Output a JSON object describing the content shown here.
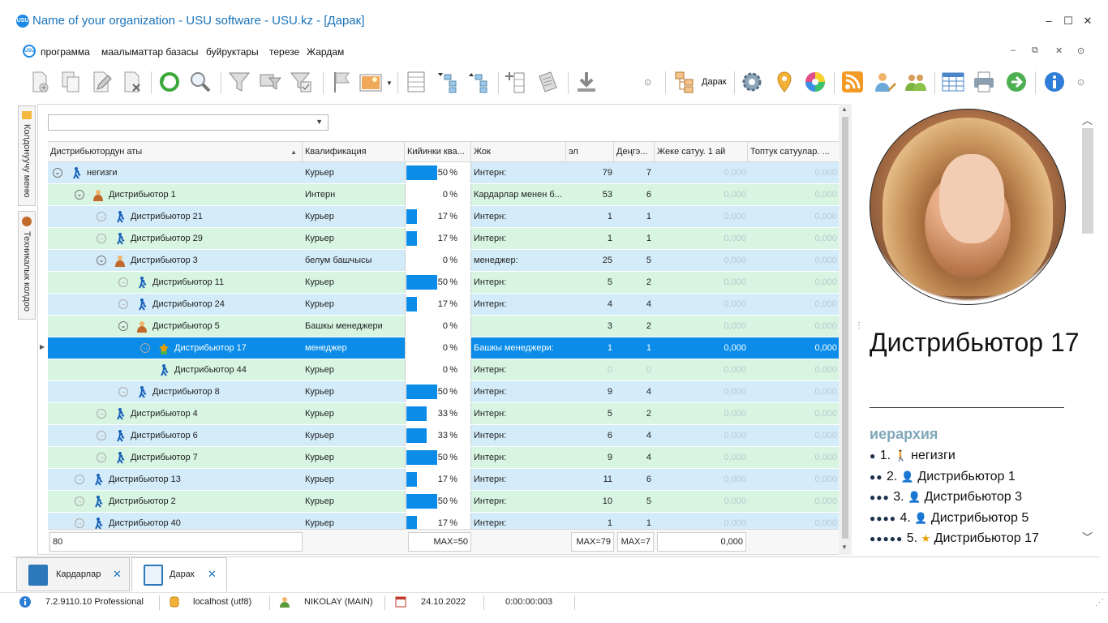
{
  "window": {
    "title": "Name of your organization - USU software - USU.kz - [Дарак]",
    "logo": "USU",
    "buttons": [
      "–",
      "☐",
      "✕"
    ]
  },
  "menu": {
    "items": [
      "программа",
      "маалыматтар базасы",
      "буйруктары",
      "терезе",
      "Жардам"
    ],
    "window_controls": [
      "–",
      "⧉",
      "✕",
      "⊙"
    ]
  },
  "toolbar": {
    "tree_button_label": "Дарак",
    "icons": [
      "add-icon",
      "copy-icon",
      "edit-icon",
      "delete-icon",
      "refresh-icon",
      "search-icon",
      "filter-icon",
      "filter-settings-icon",
      "filter-clear-icon",
      "flag-icon",
      "image-icon",
      "expand-rows-icon",
      "tree-expand-icon",
      "tree-collapse-icon",
      "add-column-icon",
      "notes-icon",
      "download-icon",
      "arrow-circle-icon",
      "tree-icon",
      "gear-icon",
      "location-pin-icon",
      "color-wheel-icon",
      "rss-icon",
      "user-edit-icon",
      "users-icon",
      "table-icon",
      "printer-icon",
      "forward-icon",
      "info-icon"
    ]
  },
  "left_tabs": [
    "Колдонуучу меню",
    "Техникалык колдоо"
  ],
  "grid": {
    "filter_value": "",
    "columns": [
      "Дистрибьютордун аты",
      "Квалификация",
      "Кийинки ква...",
      "Жок",
      "эл",
      "Деңгэ...",
      "Жеке сатуу. 1 ай",
      "Топтук сатуулар. ..."
    ],
    "rows": [
      {
        "name": "негизги",
        "level": 0,
        "icon": "walk",
        "exp": "⊙",
        "qual": "Курьер",
        "pct": 50,
        "pct_label": "50",
        "jok": "Интерн:",
        "el": "79",
        "den": "7",
        "j1": "0,000",
        "t1": "0,000",
        "color": "blue"
      },
      {
        "name": "Дистрибьютор 1",
        "level": 1,
        "icon": "boss",
        "exp": "⊙",
        "qual": "Интерн",
        "pct": 0,
        "pct_label": "0",
        "jok": "Кардарлар менен б...",
        "el": "53",
        "den": "6",
        "j1": "0,000",
        "t1": "0,000",
        "color": "green"
      },
      {
        "name": "Дистрибьютор 21",
        "level": 2,
        "icon": "walk",
        "exp": "→",
        "qual": "Курьер",
        "pct": 17,
        "pct_label": "17",
        "jok": "Интерн:",
        "el": "1",
        "den": "1",
        "j1": "0,000",
        "t1": "0,000",
        "color": "blue"
      },
      {
        "name": "Дистрибьютор 29",
        "level": 2,
        "icon": "walk",
        "exp": "→",
        "qual": "Курьер",
        "pct": 17,
        "pct_label": "17",
        "jok": "Интерн:",
        "el": "1",
        "den": "1",
        "j1": "0,000",
        "t1": "0,000",
        "color": "green"
      },
      {
        "name": "Дистрибьютор 3",
        "level": 2,
        "icon": "boss",
        "exp": "⊙",
        "qual": "белум башчысы",
        "pct": 0,
        "pct_label": "0",
        "jok": "менеджер:",
        "el": "25",
        "den": "5",
        "j1": "0,000",
        "t1": "0,000",
        "color": "blue"
      },
      {
        "name": "Дистрибьютор 11",
        "level": 3,
        "icon": "walk",
        "exp": "→",
        "qual": "Курьер",
        "pct": 50,
        "pct_label": "50",
        "jok": "Интерн:",
        "el": "5",
        "den": "2",
        "j1": "0,000",
        "t1": "0,000",
        "color": "green"
      },
      {
        "name": "Дистрибьютор 24",
        "level": 3,
        "icon": "walk",
        "exp": "→",
        "qual": "Курьер",
        "pct": 17,
        "pct_label": "17",
        "jok": "Интерн:",
        "el": "4",
        "den": "4",
        "j1": "0,000",
        "t1": "0,000",
        "color": "blue"
      },
      {
        "name": "Дистрибьютор 5",
        "level": 3,
        "icon": "boss",
        "exp": "⊙",
        "qual": "Башкы менеджери",
        "pct": 0,
        "pct_label": "0",
        "jok": "",
        "el": "3",
        "den": "2",
        "j1": "0,000",
        "t1": "0,000",
        "color": "green"
      },
      {
        "name": "Дистрибьютор 17",
        "level": 4,
        "icon": "star",
        "exp": "→",
        "qual": "менеджер",
        "pct": 0,
        "pct_label": "0",
        "jok": "Башкы менеджери:",
        "el": "1",
        "den": "1",
        "j1": "0,000",
        "t1": "0,000",
        "color": "blue",
        "selected": true
      },
      {
        "name": "Дистрибьютор 44",
        "level": 4,
        "icon": "walk",
        "exp": "",
        "qual": "Курьер",
        "pct": 0,
        "pct_label": "0",
        "jok": "Интерн:",
        "el": "0",
        "den": "0",
        "j1": "0,000",
        "t1": "0,000",
        "color": "green"
      },
      {
        "name": "Дистрибьютор 8",
        "level": 3,
        "icon": "walk",
        "exp": "→",
        "qual": "Курьер",
        "pct": 50,
        "pct_label": "50",
        "jok": "Интерн:",
        "el": "9",
        "den": "4",
        "j1": "0,000",
        "t1": "0,000",
        "color": "blue"
      },
      {
        "name": "Дистрибьютор 4",
        "level": 2,
        "icon": "walk",
        "exp": "→",
        "qual": "Курьер",
        "pct": 33,
        "pct_label": "33",
        "jok": "Интерн:",
        "el": "5",
        "den": "2",
        "j1": "0,000",
        "t1": "0,000",
        "color": "green"
      },
      {
        "name": "Дистрибьютор 6",
        "level": 2,
        "icon": "walk",
        "exp": "→",
        "qual": "Курьер",
        "pct": 33,
        "pct_label": "33",
        "jok": "Интерн:",
        "el": "6",
        "den": "4",
        "j1": "0,000",
        "t1": "0,000",
        "color": "blue"
      },
      {
        "name": "Дистрибьютор 7",
        "level": 2,
        "icon": "walk",
        "exp": "→",
        "qual": "Курьер",
        "pct": 50,
        "pct_label": "50",
        "jok": "Интерн:",
        "el": "9",
        "den": "4",
        "j1": "0,000",
        "t1": "0,000",
        "color": "green"
      },
      {
        "name": "Дистрибьютор 13",
        "level": 1,
        "icon": "walk",
        "exp": "→",
        "qual": "Курьер",
        "pct": 17,
        "pct_label": "17",
        "jok": "Интерн:",
        "el": "11",
        "den": "6",
        "j1": "0,000",
        "t1": "0,000",
        "color": "blue"
      },
      {
        "name": "Дистрибьютор 2",
        "level": 1,
        "icon": "walk",
        "exp": "→",
        "qual": "Курьер",
        "pct": 50,
        "pct_label": "50",
        "jok": "Интерн:",
        "el": "10",
        "den": "5",
        "j1": "0,000",
        "t1": "0,000",
        "color": "green"
      },
      {
        "name": "Дистрибьютор 40",
        "level": 1,
        "icon": "walk",
        "exp": "→",
        "qual": "Курьер",
        "pct": 17,
        "pct_label": "17",
        "jok": "Интерн:",
        "el": "1",
        "den": "1",
        "j1": "0,000",
        "t1": "0,000",
        "color": "blue"
      }
    ],
    "footer": {
      "count": "80",
      "max_kk": "MAX=50",
      "max_el": "MAX=79",
      "max_den": "MAX=7",
      "sum_j1": "0,000"
    },
    "percent_sign": "%"
  },
  "detail": {
    "title": "Дистрибьютор 17",
    "hierarchy_label": "иерархия",
    "hierarchy": [
      {
        "dots": "●",
        "text": "1.",
        "name": "негизги",
        "icon": "walk"
      },
      {
        "dots": "●●",
        "text": "2.",
        "name": "Дистрибьютор 1",
        "icon": "boss"
      },
      {
        "dots": "●●●",
        "text": "3.",
        "name": "Дистрибьютор 3",
        "icon": "boss"
      },
      {
        "dots": "●●●●",
        "text": "4.",
        "name": "Дистрибьютор 5",
        "icon": "boss"
      },
      {
        "dots": "●●●●●",
        "text": "5.",
        "name": "Дистрибьютор 17",
        "icon": "star"
      }
    ]
  },
  "tabs": [
    {
      "label": "Кардарлар",
      "close": "✕",
      "active": false
    },
    {
      "label": "Дарак",
      "close": "✕",
      "active": true
    }
  ],
  "status": {
    "version": "7.2.9110.10 Professional",
    "db": "localhost (utf8)",
    "user": "NIKOLAY (MAIN)",
    "date": "24.10.2022",
    "timer": "0:00:00:003"
  },
  "colors": {
    "accent": "#0a8ce8",
    "row_blue": "#d4ecfa",
    "row_green": "#d8f5e1",
    "title": "#1a73b8"
  }
}
